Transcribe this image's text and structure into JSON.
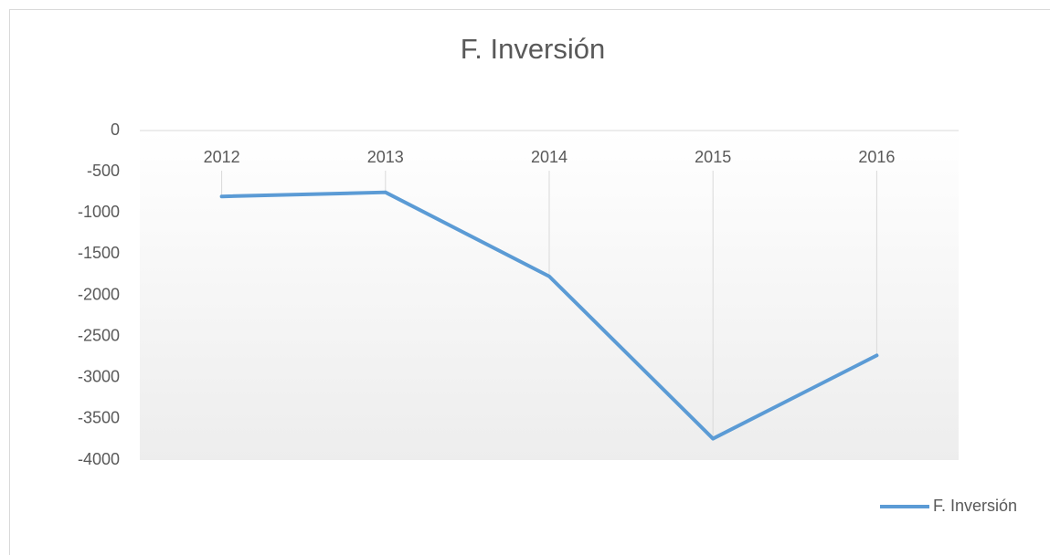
{
  "chart_data": {
    "type": "line",
    "title": "F. Inversión",
    "categories": [
      "2012",
      "2013",
      "2014",
      "2015",
      "2016"
    ],
    "series": [
      {
        "name": "F. Inversión",
        "color": "#5b9bd5",
        "values": [
          -800,
          -750,
          -1770,
          -3740,
          -2730
        ]
      }
    ],
    "ylim": [
      -4000,
      0
    ],
    "yticks": [
      0,
      -500,
      -1000,
      -1500,
      -2000,
      -2500,
      -3000,
      -3500,
      -4000
    ],
    "grid": false,
    "drop_lines": true,
    "legend": "right"
  }
}
